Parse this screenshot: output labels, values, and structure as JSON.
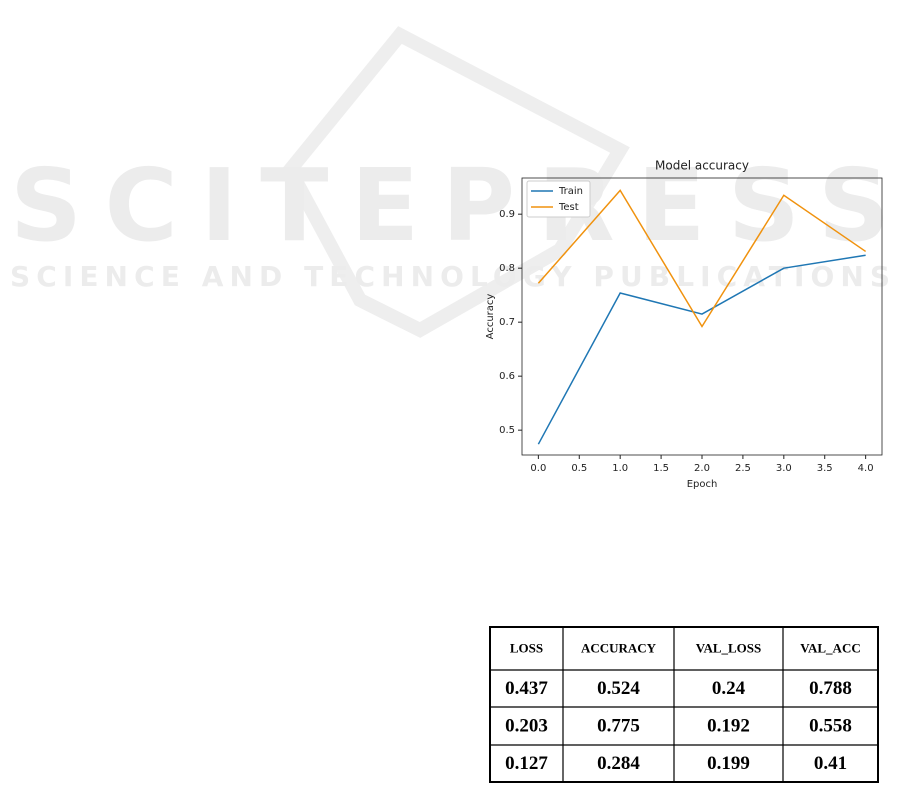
{
  "watermark": {
    "title": "SCITEPRESS",
    "subtitle": "SCIENCE AND TECHNOLOGY PUBLICATIONS"
  },
  "chart_data": {
    "type": "line",
    "title": "Model accuracy",
    "x_label": "Epoch",
    "y_label": "Accuracy",
    "x": [
      0,
      1,
      2,
      3,
      4
    ],
    "series": [
      {
        "name": "Train",
        "color": "#1f77b4",
        "values": [
          0.474,
          0.754,
          0.715,
          0.8,
          0.824
        ]
      },
      {
        "name": "Test",
        "color": "#f0920e",
        "values": [
          0.772,
          0.944,
          0.692,
          0.935,
          0.831
        ]
      }
    ],
    "xlim": [
      -0.2,
      4.2
    ],
    "xticks": [
      {
        "value": 0,
        "label": "0.0"
      },
      {
        "value": 0.5,
        "label": "0.5"
      },
      {
        "value": 1,
        "label": "1.0"
      },
      {
        "value": 1.5,
        "label": "1.5"
      },
      {
        "value": 2,
        "label": "2.0"
      },
      {
        "value": 2.5,
        "label": "2.5"
      },
      {
        "value": 3,
        "label": "3.0"
      },
      {
        "value": 3.5,
        "label": "3.5"
      },
      {
        "value": 4,
        "label": "4.0"
      }
    ],
    "ylim": [
      0.454,
      0.967
    ],
    "yticks": [
      0.5,
      0.6,
      0.7,
      0.8,
      0.9
    ],
    "legend": "upper left"
  },
  "table": {
    "header": [
      "LOSS",
      "ACCURACY",
      "VAL_LOSS",
      "VAL_ACC"
    ],
    "rows": [
      [
        0.437,
        0.524,
        0.24,
        0.788
      ],
      [
        0.203,
        0.775,
        0.192,
        0.558
      ],
      [
        0.127,
        0.284,
        0.199,
        0.41
      ]
    ]
  }
}
